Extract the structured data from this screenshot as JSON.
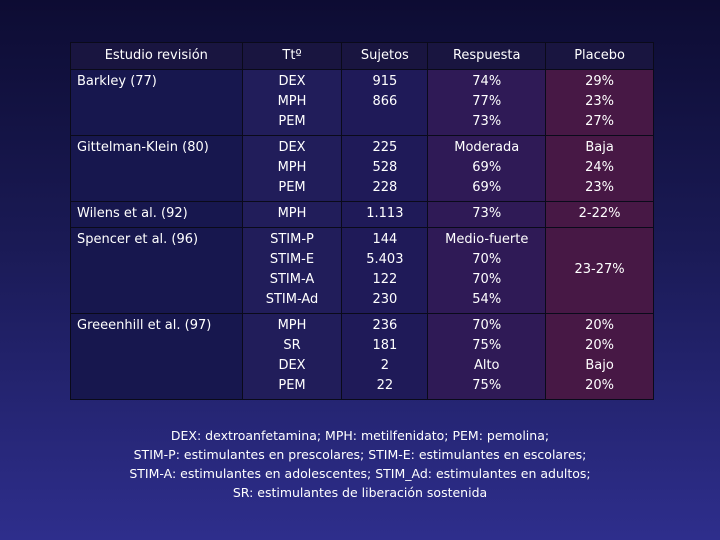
{
  "table": {
    "headers": [
      "Estudio revisión",
      "Ttº",
      "Sujetos",
      "Respuesta",
      "Placebo"
    ],
    "rows": [
      {
        "study": "Barkley (77)",
        "ttos": [
          "DEX",
          "MPH",
          "PEM"
        ],
        "subjects": [
          "915",
          "866"
        ],
        "response": [
          "74%",
          "77%",
          "73%"
        ],
        "placebo": [
          "29%",
          "23%",
          "27%"
        ]
      },
      {
        "study": "Gittelman-Klein (80)",
        "ttos": [
          "DEX",
          "MPH",
          "PEM"
        ],
        "subjects": [
          "225",
          "528",
          "228"
        ],
        "response": [
          "Moderada",
          "69%",
          "69%"
        ],
        "placebo": [
          "Baja",
          "24%",
          "23%"
        ]
      },
      {
        "study": "Wilens et al. (92)",
        "ttos": [
          "MPH"
        ],
        "subjects": [
          "1.113"
        ],
        "response": [
          "73%"
        ],
        "placebo": [
          "2-22%"
        ]
      },
      {
        "study": "Spencer et al. (96)",
        "ttos": [
          "STIM-P",
          "STIM-E",
          "STIM-A",
          "STIM-Ad"
        ],
        "subjects": [
          "144",
          "5.403",
          "122",
          "230"
        ],
        "response": [
          "Medio-fuerte",
          "70%",
          "70%",
          "54%"
        ],
        "placebo": [
          "23-27%"
        ]
      },
      {
        "study": "Greeenhill et al. (97)",
        "ttos": [
          "MPH",
          "SR",
          "DEX",
          "PEM"
        ],
        "subjects": [
          "236",
          "181",
          "2",
          "22"
        ],
        "response": [
          "70%",
          "75%",
          "Alto",
          "75%"
        ],
        "placebo": [
          "20%",
          "20%",
          "Bajo",
          "20%"
        ]
      }
    ]
  },
  "footnote": [
    "DEX: dextroanfetamina; MPH: metilfenidato; PEM: pemolina;",
    "STIM-P: estimulantes en prescolares; STIM-E: estimulantes en escolares;",
    "STIM-A: estimulantes en adolescentes; STIM_Ad: estimulantes en adultos;",
    "SR: estimulantes de liberación sostenida"
  ]
}
